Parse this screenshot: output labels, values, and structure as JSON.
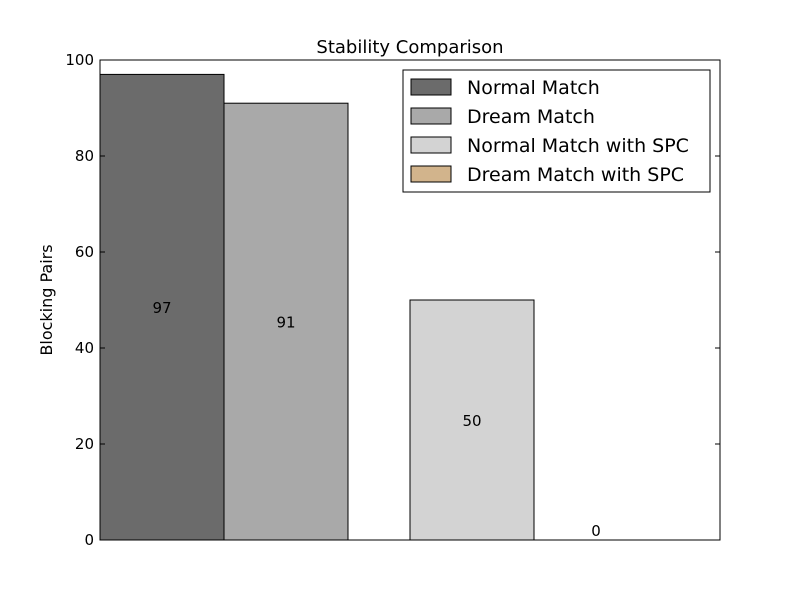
{
  "chart_data": {
    "type": "bar",
    "title": "Stability Comparison",
    "xlabel": "",
    "ylabel": "Blocking Pairs",
    "ylim": [
      0,
      100
    ],
    "yticks": [
      "0",
      "20",
      "40",
      "60",
      "80",
      "100"
    ],
    "grid": false,
    "legend_position": "top-right",
    "series": [
      {
        "name": "Normal Match",
        "value": 97,
        "label": "97",
        "color": "#6b6b6b"
      },
      {
        "name": "Dream Match",
        "value": 91,
        "label": "91",
        "color": "#a9a9a9"
      },
      {
        "name": "Normal Match with SPC",
        "value": 50,
        "label": "50",
        "color": "#d3d3d3"
      },
      {
        "name": "Dream Match with SPC",
        "value": 0,
        "label": "0",
        "color": "#d2b48c"
      }
    ]
  }
}
